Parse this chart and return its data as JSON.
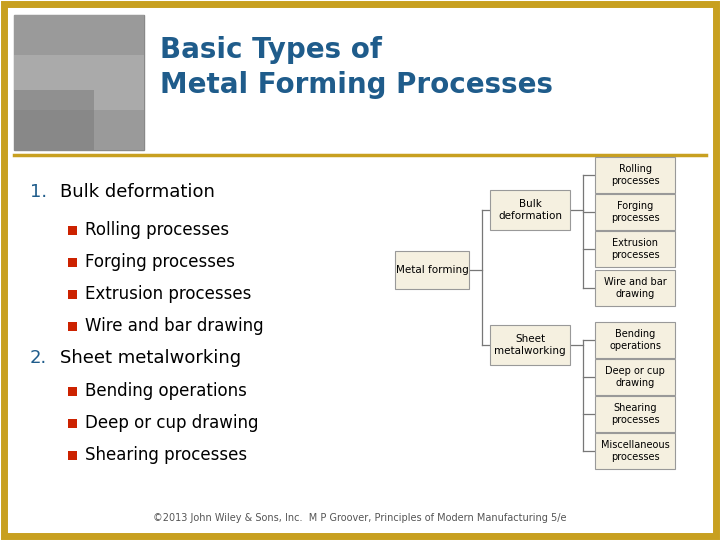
{
  "title_line1": "Basic Types of",
  "title_line2": "Metal Forming Processes",
  "title_color": "#1F5C8B",
  "background_color": "#FFFFFF",
  "border_color": "#C8A020",
  "header_separator_color": "#C8A020",
  "number_color": "#1F5C8B",
  "bullet_color": "#CC2200",
  "text_color": "#000000",
  "item1_header": "Bulk deformation",
  "item1_bullets": [
    "Rolling processes",
    "Forging processes",
    "Extrusion processes",
    "Wire and bar drawing"
  ],
  "item2_header": "Sheet metalworking",
  "item2_bullets": [
    "Bending operations",
    "Deep or cup drawing",
    "Shearing processes"
  ],
  "footer": "©2013 John Wiley & Sons, Inc.  M P Groover, Principles of Modern Manufacturing 5/e",
  "diagram_box_fill": "#F5F0E0",
  "diagram_box_edge": "#999999",
  "diagram_line_color": "#777777",
  "img_box_fill": "#AAAAAA",
  "img_box_edge": "#888888"
}
